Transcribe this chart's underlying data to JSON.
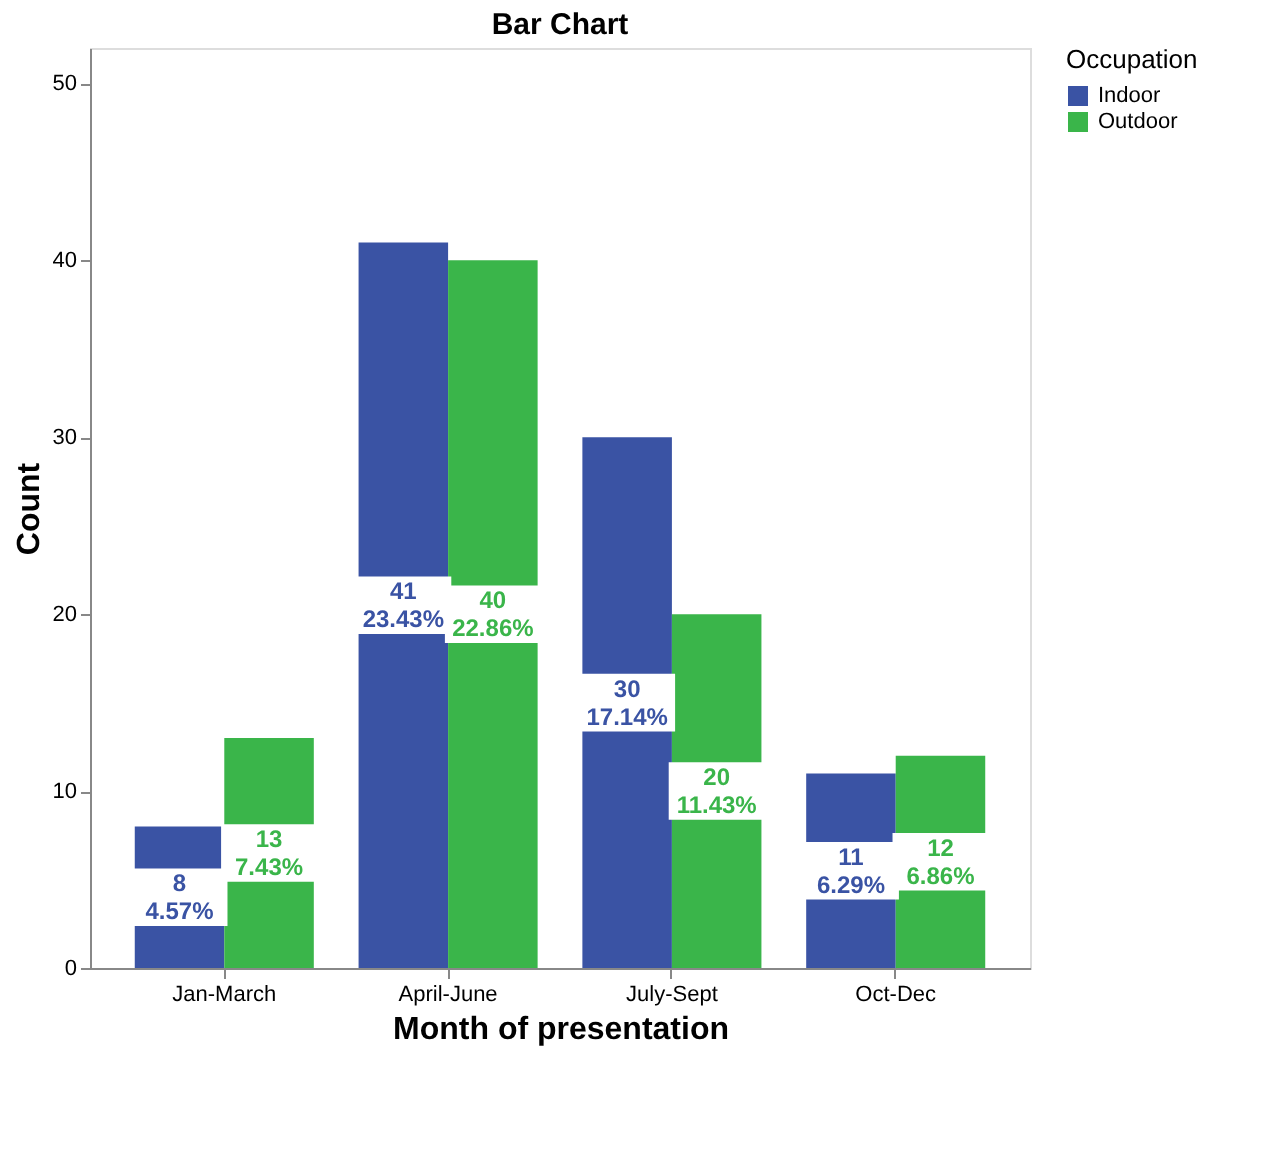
{
  "chart_data": {
    "type": "bar",
    "title": "Bar Chart",
    "xlabel": "Month of presentation",
    "ylabel": "Count",
    "legend_title": "Occupation",
    "categories": [
      "Jan-March",
      "April-June",
      "July-Sept",
      "Oct-Dec"
    ],
    "series": [
      {
        "name": "Indoor",
        "color": "#3a53a4",
        "values": [
          8,
          41,
          30,
          11
        ],
        "value_labels": [
          "8\n4.57%",
          "41\n23.43%",
          "30\n17.14%",
          "11\n6.29%"
        ]
      },
      {
        "name": "Outdoor",
        "color": "#3ab54a",
        "values": [
          13,
          40,
          20,
          12
        ],
        "value_labels": [
          "13\n7.43%",
          "40\n22.86%",
          "20\n11.43%",
          "12\n6.86%"
        ]
      }
    ],
    "ylim": [
      0,
      52
    ],
    "yticks": [
      0,
      10,
      20,
      30,
      40,
      50
    ],
    "grid": false,
    "legend": "top right"
  }
}
